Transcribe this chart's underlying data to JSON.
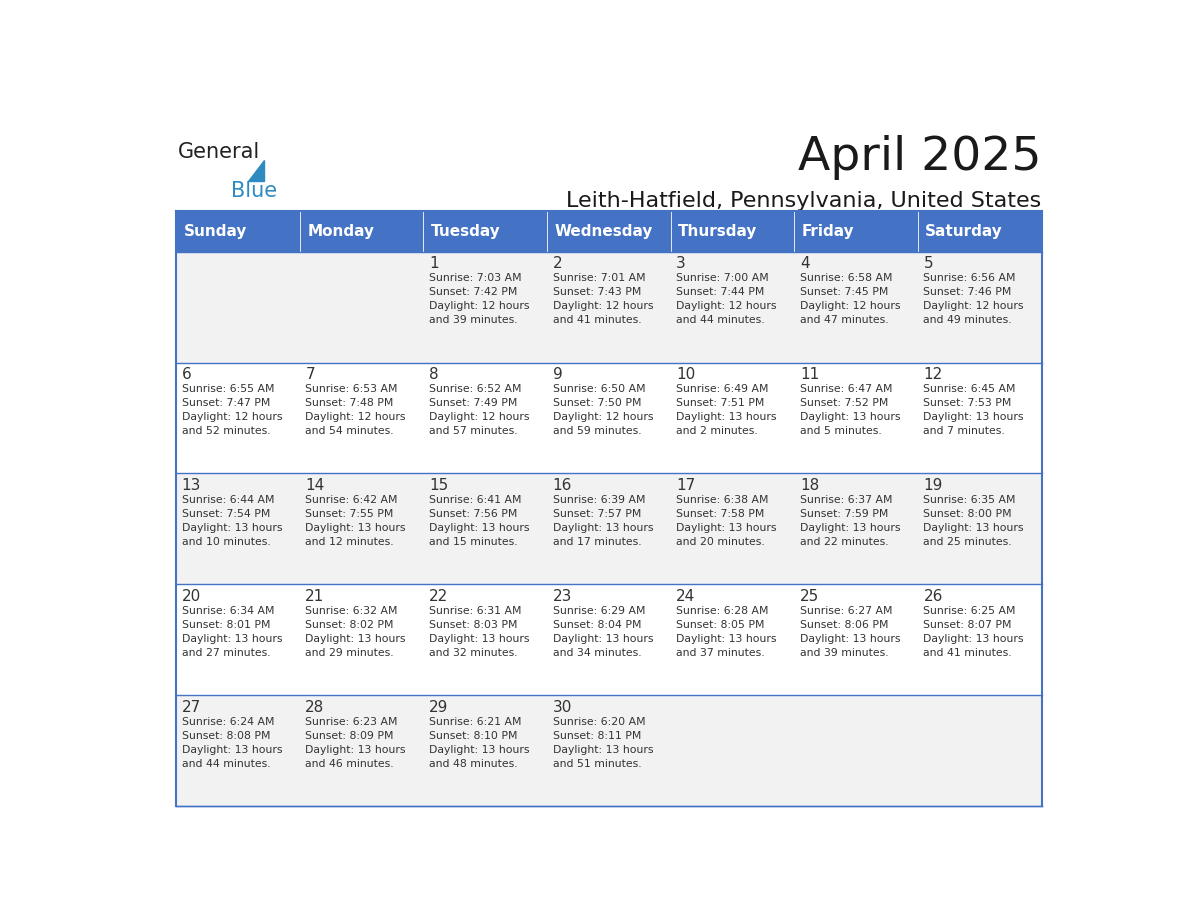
{
  "title": "April 2025",
  "subtitle": "Leith-Hatfield, Pennsylvania, United States",
  "days_of_week": [
    "Sunday",
    "Monday",
    "Tuesday",
    "Wednesday",
    "Thursday",
    "Friday",
    "Saturday"
  ],
  "header_color": "#4472C4",
  "header_text_color": "#FFFFFF",
  "cell_bg_even": "#FFFFFF",
  "cell_bg_odd": "#F2F2F2",
  "border_color": "#4472C4",
  "text_color": "#333333",
  "calendar_data": [
    [
      {
        "day": null,
        "info": null
      },
      {
        "day": null,
        "info": null
      },
      {
        "day": 1,
        "info": "Sunrise: 7:03 AM\nSunset: 7:42 PM\nDaylight: 12 hours\nand 39 minutes."
      },
      {
        "day": 2,
        "info": "Sunrise: 7:01 AM\nSunset: 7:43 PM\nDaylight: 12 hours\nand 41 minutes."
      },
      {
        "day": 3,
        "info": "Sunrise: 7:00 AM\nSunset: 7:44 PM\nDaylight: 12 hours\nand 44 minutes."
      },
      {
        "day": 4,
        "info": "Sunrise: 6:58 AM\nSunset: 7:45 PM\nDaylight: 12 hours\nand 47 minutes."
      },
      {
        "day": 5,
        "info": "Sunrise: 6:56 AM\nSunset: 7:46 PM\nDaylight: 12 hours\nand 49 minutes."
      }
    ],
    [
      {
        "day": 6,
        "info": "Sunrise: 6:55 AM\nSunset: 7:47 PM\nDaylight: 12 hours\nand 52 minutes."
      },
      {
        "day": 7,
        "info": "Sunrise: 6:53 AM\nSunset: 7:48 PM\nDaylight: 12 hours\nand 54 minutes."
      },
      {
        "day": 8,
        "info": "Sunrise: 6:52 AM\nSunset: 7:49 PM\nDaylight: 12 hours\nand 57 minutes."
      },
      {
        "day": 9,
        "info": "Sunrise: 6:50 AM\nSunset: 7:50 PM\nDaylight: 12 hours\nand 59 minutes."
      },
      {
        "day": 10,
        "info": "Sunrise: 6:49 AM\nSunset: 7:51 PM\nDaylight: 13 hours\nand 2 minutes."
      },
      {
        "day": 11,
        "info": "Sunrise: 6:47 AM\nSunset: 7:52 PM\nDaylight: 13 hours\nand 5 minutes."
      },
      {
        "day": 12,
        "info": "Sunrise: 6:45 AM\nSunset: 7:53 PM\nDaylight: 13 hours\nand 7 minutes."
      }
    ],
    [
      {
        "day": 13,
        "info": "Sunrise: 6:44 AM\nSunset: 7:54 PM\nDaylight: 13 hours\nand 10 minutes."
      },
      {
        "day": 14,
        "info": "Sunrise: 6:42 AM\nSunset: 7:55 PM\nDaylight: 13 hours\nand 12 minutes."
      },
      {
        "day": 15,
        "info": "Sunrise: 6:41 AM\nSunset: 7:56 PM\nDaylight: 13 hours\nand 15 minutes."
      },
      {
        "day": 16,
        "info": "Sunrise: 6:39 AM\nSunset: 7:57 PM\nDaylight: 13 hours\nand 17 minutes."
      },
      {
        "day": 17,
        "info": "Sunrise: 6:38 AM\nSunset: 7:58 PM\nDaylight: 13 hours\nand 20 minutes."
      },
      {
        "day": 18,
        "info": "Sunrise: 6:37 AM\nSunset: 7:59 PM\nDaylight: 13 hours\nand 22 minutes."
      },
      {
        "day": 19,
        "info": "Sunrise: 6:35 AM\nSunset: 8:00 PM\nDaylight: 13 hours\nand 25 minutes."
      }
    ],
    [
      {
        "day": 20,
        "info": "Sunrise: 6:34 AM\nSunset: 8:01 PM\nDaylight: 13 hours\nand 27 minutes."
      },
      {
        "day": 21,
        "info": "Sunrise: 6:32 AM\nSunset: 8:02 PM\nDaylight: 13 hours\nand 29 minutes."
      },
      {
        "day": 22,
        "info": "Sunrise: 6:31 AM\nSunset: 8:03 PM\nDaylight: 13 hours\nand 32 minutes."
      },
      {
        "day": 23,
        "info": "Sunrise: 6:29 AM\nSunset: 8:04 PM\nDaylight: 13 hours\nand 34 minutes."
      },
      {
        "day": 24,
        "info": "Sunrise: 6:28 AM\nSunset: 8:05 PM\nDaylight: 13 hours\nand 37 minutes."
      },
      {
        "day": 25,
        "info": "Sunrise: 6:27 AM\nSunset: 8:06 PM\nDaylight: 13 hours\nand 39 minutes."
      },
      {
        "day": 26,
        "info": "Sunrise: 6:25 AM\nSunset: 8:07 PM\nDaylight: 13 hours\nand 41 minutes."
      }
    ],
    [
      {
        "day": 27,
        "info": "Sunrise: 6:24 AM\nSunset: 8:08 PM\nDaylight: 13 hours\nand 44 minutes."
      },
      {
        "day": 28,
        "info": "Sunrise: 6:23 AM\nSunset: 8:09 PM\nDaylight: 13 hours\nand 46 minutes."
      },
      {
        "day": 29,
        "info": "Sunrise: 6:21 AM\nSunset: 8:10 PM\nDaylight: 13 hours\nand 48 minutes."
      },
      {
        "day": 30,
        "info": "Sunrise: 6:20 AM\nSunset: 8:11 PM\nDaylight: 13 hours\nand 51 minutes."
      },
      {
        "day": null,
        "info": null
      },
      {
        "day": null,
        "info": null
      },
      {
        "day": null,
        "info": null
      }
    ]
  ],
  "logo_text_general": "General",
  "logo_text_blue": "Blue",
  "logo_color_general": "#222222",
  "logo_color_blue": "#2E8BC0",
  "logo_triangle_color": "#2E8BC0"
}
